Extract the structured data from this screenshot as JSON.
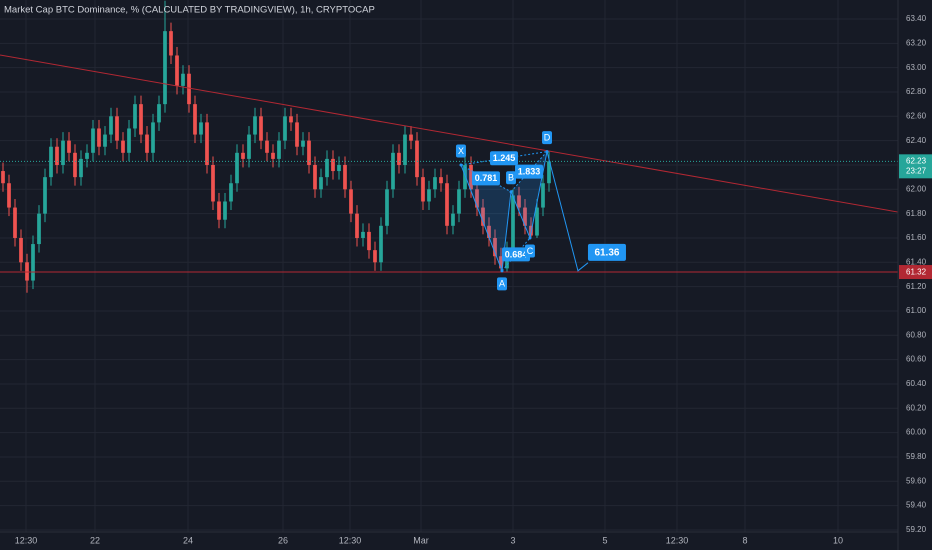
{
  "chart_data": {
    "type": "candlestick",
    "title": "Market Cap BTC Dominance, % (CALCULATED BY TRADINGVIEW), 1h, CRYPTOCAP",
    "up_color": "#26a69a",
    "down_color": "#ef5350",
    "grid": true,
    "xlim": [
      -0.5,
      149.17
    ],
    "ylim": [
      59.134,
      63.556
    ],
    "xticks": [
      {
        "value": 3.83,
        "label": "12:30"
      },
      {
        "value": 15.33,
        "label": "22"
      },
      {
        "value": 30.83,
        "label": "24"
      },
      {
        "value": 46.67,
        "label": "26"
      },
      {
        "value": 57.83,
        "label": "12:30"
      },
      {
        "value": 69.67,
        "label": "Mar"
      },
      {
        "value": 85,
        "label": "3"
      },
      {
        "value": 100.33,
        "label": "5"
      },
      {
        "value": 112.33,
        "label": "12:30"
      },
      {
        "value": 123.67,
        "label": "8"
      },
      {
        "value": 139.17,
        "label": "10"
      }
    ],
    "yticks": [
      {
        "value": 59.2,
        "label": "59.20"
      },
      {
        "value": 59.4,
        "label": "59.40"
      },
      {
        "value": 59.6,
        "label": "59.60"
      },
      {
        "value": 59.8,
        "label": "59.80"
      },
      {
        "value": 60,
        "label": "60.00"
      },
      {
        "value": 60.2,
        "label": "60.20"
      },
      {
        "value": 60.4,
        "label": "60.40"
      },
      {
        "value": 60.6,
        "label": "60.60"
      },
      {
        "value": 60.8,
        "label": "60.80"
      },
      {
        "value": 61,
        "label": "61.00"
      },
      {
        "value": 61.2,
        "label": "61.20"
      },
      {
        "value": 61.4,
        "label": "61.40"
      },
      {
        "value": 61.6,
        "label": "61.60"
      },
      {
        "value": 61.8,
        "label": "61.80"
      },
      {
        "value": 62,
        "label": "62.00"
      },
      {
        "value": 62.2,
        "label": "62.20"
      },
      {
        "value": 62.4,
        "label": "62.40"
      },
      {
        "value": 62.6,
        "label": "62.60"
      },
      {
        "value": 62.8,
        "label": "62.80"
      },
      {
        "value": 63,
        "label": "63.00"
      },
      {
        "value": 63.2,
        "label": "63.20"
      },
      {
        "value": 63.4,
        "label": "63.40"
      }
    ],
    "candles": {
      "open": [
        62.15,
        62.05,
        61.85,
        61.6,
        61.4,
        61.25,
        61.55,
        61.8,
        62.1,
        62.35,
        62.2,
        62.4,
        62.3,
        62.1,
        62.25,
        62.3,
        62.5,
        62.35,
        62.45,
        62.6,
        62.4,
        62.3,
        62.5,
        62.7,
        62.45,
        62.3,
        62.55,
        62.7,
        63.3,
        63.1,
        62.85,
        62.95,
        62.7,
        62.45,
        62.55,
        62.2,
        61.9,
        61.75,
        61.9,
        62.05,
        62.3,
        62.25,
        62.45,
        62.6,
        62.4,
        62.3,
        62.25,
        62.4,
        62.6,
        62.55,
        62.35,
        62.4,
        62.2,
        62.0,
        62.1,
        62.25,
        62.15,
        62.2,
        62.0,
        61.8,
        61.6,
        61.65,
        61.5,
        61.4,
        61.7,
        62.0,
        62.3,
        62.2,
        62.45,
        62.4,
        62.1,
        61.9,
        62.0,
        62.1,
        62.05,
        61.7,
        61.8,
        62.0,
        62.2,
        62.0,
        61.85,
        61.7,
        61.6,
        61.45,
        61.35,
        61.5,
        61.95,
        61.85,
        61.7,
        61.62,
        61.85,
        62.05
      ],
      "high": [
        62.22,
        62.12,
        61.92,
        61.67,
        61.47,
        61.62,
        61.87,
        62.17,
        62.42,
        62.42,
        62.47,
        62.47,
        62.37,
        62.32,
        62.37,
        62.57,
        62.57,
        62.52,
        62.67,
        62.67,
        62.47,
        62.57,
        62.77,
        62.77,
        62.52,
        62.62,
        62.77,
        63.55,
        63.37,
        63.17,
        63.02,
        63.02,
        62.77,
        62.62,
        62.62,
        62.27,
        61.97,
        61.97,
        62.12,
        62.37,
        62.37,
        62.52,
        62.67,
        62.67,
        62.47,
        62.37,
        62.47,
        62.67,
        62.67,
        62.62,
        62.47,
        62.47,
        62.27,
        62.17,
        62.32,
        62.32,
        62.27,
        62.27,
        62.07,
        61.87,
        61.72,
        61.72,
        61.57,
        61.77,
        62.07,
        62.37,
        62.37,
        62.52,
        62.52,
        62.47,
        62.17,
        62.07,
        62.17,
        62.17,
        62.12,
        61.87,
        62.07,
        62.27,
        62.27,
        62.07,
        61.92,
        61.77,
        61.67,
        61.52,
        61.57,
        62.0,
        62.02,
        61.92,
        61.77,
        61.92,
        62.12,
        62.31
      ],
      "low": [
        61.98,
        61.78,
        61.53,
        61.33,
        61.15,
        61.18,
        61.48,
        61.73,
        62.03,
        62.13,
        62.13,
        62.23,
        62.03,
        62.03,
        62.18,
        62.23,
        62.28,
        62.28,
        62.38,
        62.33,
        62.23,
        62.23,
        62.43,
        62.38,
        62.23,
        62.23,
        62.48,
        62.63,
        63.03,
        62.78,
        62.78,
        62.63,
        62.38,
        62.38,
        62.13,
        61.83,
        61.68,
        61.68,
        61.83,
        61.98,
        62.18,
        62.18,
        62.38,
        62.33,
        62.23,
        62.18,
        62.18,
        62.33,
        62.48,
        62.28,
        62.28,
        62.13,
        61.93,
        61.93,
        62.03,
        62.08,
        62.08,
        61.93,
        61.73,
        61.53,
        61.53,
        61.43,
        61.33,
        61.33,
        61.63,
        61.93,
        62.13,
        62.13,
        62.33,
        62.03,
        61.83,
        61.83,
        61.93,
        61.98,
        61.63,
        61.63,
        61.73,
        61.93,
        61.93,
        61.78,
        61.63,
        61.53,
        61.38,
        61.32,
        61.32,
        61.43,
        61.78,
        61.63,
        61.6,
        61.6,
        61.78,
        61.98
      ],
      "close": [
        62.05,
        61.85,
        61.6,
        61.4,
        61.25,
        61.55,
        61.8,
        62.1,
        62.35,
        62.2,
        62.4,
        62.3,
        62.1,
        62.25,
        62.3,
        62.5,
        62.35,
        62.45,
        62.6,
        62.4,
        62.3,
        62.5,
        62.7,
        62.45,
        62.3,
        62.55,
        62.7,
        63.3,
        63.1,
        62.85,
        62.95,
        62.7,
        62.45,
        62.55,
        62.2,
        61.9,
        61.75,
        61.9,
        62.05,
        62.3,
        62.25,
        62.45,
        62.6,
        62.4,
        62.3,
        62.25,
        62.4,
        62.6,
        62.55,
        62.35,
        62.4,
        62.2,
        62.0,
        62.1,
        62.25,
        62.15,
        62.2,
        62.0,
        61.8,
        61.6,
        61.65,
        61.5,
        61.4,
        61.7,
        62.0,
        62.3,
        62.2,
        62.45,
        62.4,
        62.1,
        61.9,
        62.0,
        62.1,
        62.05,
        61.7,
        61.8,
        62.0,
        62.2,
        62.0,
        61.85,
        61.7,
        61.6,
        61.45,
        61.35,
        61.5,
        61.95,
        61.85,
        61.7,
        61.62,
        61.85,
        62.05,
        62.23
      ]
    },
    "trendline": {
      "x": [
        -0.5,
        149.17
      ],
      "y": [
        63.104,
        61.813
      ],
      "color": "#b22833"
    },
    "support": {
      "value": 61.32,
      "label": "61.32",
      "color": "#b22833"
    },
    "last_price": {
      "value": 62.23,
      "label": "62.23",
      "countdown": "23:27",
      "color": "#26a69a"
    },
    "pattern": {
      "color": "#2196f3",
      "points": [
        {
          "label": "X",
          "x": 76.33,
          "y": 62.2
        },
        {
          "label": "A",
          "x": 83.17,
          "y": 61.33
        },
        {
          "label": "B",
          "x": 84.67,
          "y": 61.98
        },
        {
          "label": "C",
          "x": 87.83,
          "y": 61.6
        },
        {
          "label": "D",
          "x": 90.67,
          "y": 62.31
        }
      ],
      "ratios": [
        {
          "value": 0.781,
          "between": [
            0,
            2
          ]
        },
        {
          "value": 1.245,
          "between": [
            0,
            4
          ]
        },
        {
          "value": 1.833,
          "between": [
            2,
            4
          ]
        },
        {
          "value": 0.684,
          "between": [
            1,
            3
          ]
        }
      ],
      "target": {
        "x": 95.83,
        "y": 61.33,
        "value": 61.36
      }
    }
  }
}
